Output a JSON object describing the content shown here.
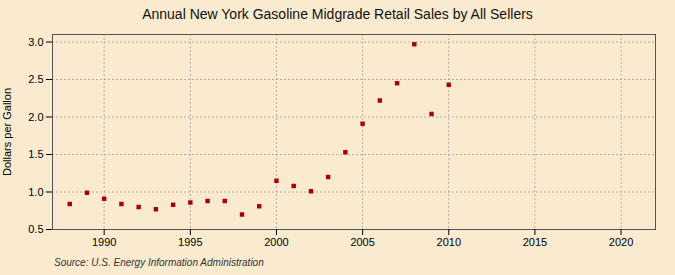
{
  "chart_data": {
    "type": "scatter",
    "title": "Annual New York Gasoline Midgrade Retail Sales by All Sellers",
    "ylabel": "Dollars per Gallon",
    "source": "Source: U.S. Energy Information Administration",
    "x": [
      1988,
      1989,
      1990,
      1991,
      1992,
      1993,
      1994,
      1995,
      1996,
      1997,
      1998,
      1999,
      2000,
      2001,
      2002,
      2003,
      2004,
      2005,
      2006,
      2007,
      2008,
      2009,
      2010
    ],
    "values": [
      0.84,
      0.99,
      0.91,
      0.84,
      0.8,
      0.77,
      0.83,
      0.86,
      0.88,
      0.88,
      0.7,
      0.81,
      1.15,
      1.08,
      1.01,
      1.2,
      1.53,
      1.91,
      2.22,
      2.45,
      2.97,
      2.04,
      2.43
    ],
    "color": "#aa0000",
    "marker": "square",
    "xlim": [
      1987,
      2022
    ],
    "ylim": [
      0.5,
      3.1
    ],
    "xticks": [
      1990,
      1995,
      2000,
      2005,
      2010,
      2015,
      2020
    ],
    "yticks": [
      0.5,
      {
        "value": 1.0,
        "label": "1.0"
      },
      1.5,
      {
        "value": 2.0,
        "label": "2.0"
      },
      2.5,
      {
        "value": 3.0,
        "label": "3.0"
      }
    ],
    "grid": true
  }
}
